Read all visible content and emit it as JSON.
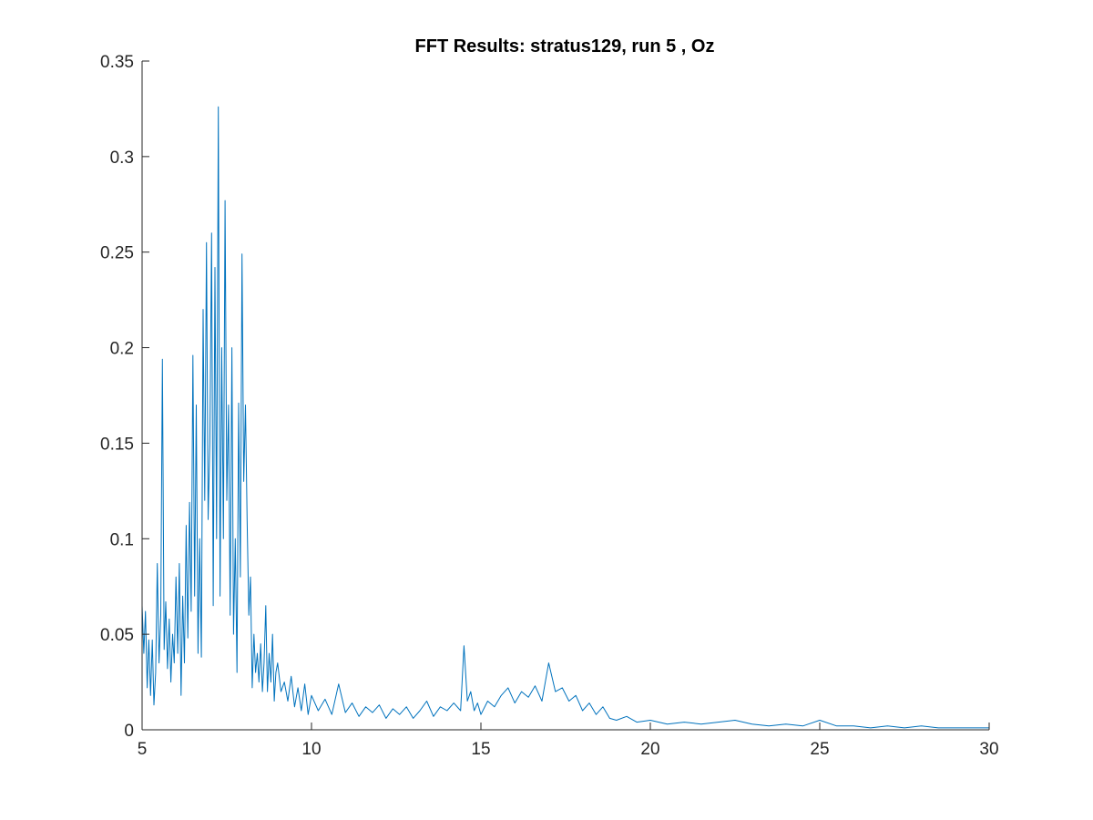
{
  "chart_data": {
    "type": "line",
    "title": "FFT Results: stratus129, run 5 , Oz",
    "xlabel": "",
    "ylabel": "",
    "xlim": [
      5,
      30
    ],
    "ylim": [
      0,
      0.35
    ],
    "xticks": [
      5,
      10,
      15,
      20,
      25,
      30
    ],
    "xtick_labels": [
      "5",
      "10",
      "15",
      "20",
      "25",
      "30"
    ],
    "yticks": [
      0,
      0.05,
      0.1,
      0.15,
      0.2,
      0.25,
      0.3,
      0.35
    ],
    "ytick_labels": [
      "0",
      "0.05",
      "0.1",
      "0.15",
      "0.2",
      "0.25",
      "0.3",
      "0.35"
    ],
    "grid": false,
    "line_color": "#0072BD",
    "series": [
      {
        "x": [
          5.0,
          5.05,
          5.1,
          5.15,
          5.2,
          5.25,
          5.3,
          5.35,
          5.4,
          5.45,
          5.5,
          5.55,
          5.6,
          5.65,
          5.7,
          5.75,
          5.8,
          5.85,
          5.9,
          5.95,
          6.0,
          6.05,
          6.1,
          6.15,
          6.2,
          6.25,
          6.3,
          6.35,
          6.4,
          6.45,
          6.5,
          6.55,
          6.6,
          6.65,
          6.7,
          6.75,
          6.8,
          6.85,
          6.9,
          6.95,
          7.0,
          7.05,
          7.1,
          7.15,
          7.2,
          7.25,
          7.3,
          7.35,
          7.4,
          7.45,
          7.5,
          7.55,
          7.6,
          7.65,
          7.7,
          7.75,
          7.8,
          7.85,
          7.9,
          7.95,
          8.0,
          8.05,
          8.1,
          8.15,
          8.2,
          8.25,
          8.3,
          8.35,
          8.4,
          8.45,
          8.5,
          8.55,
          8.6,
          8.65,
          8.7,
          8.75,
          8.8,
          8.85,
          8.9,
          8.95,
          9.0,
          9.1,
          9.2,
          9.3,
          9.4,
          9.5,
          9.6,
          9.7,
          9.8,
          9.9,
          10.0,
          10.2,
          10.4,
          10.6,
          10.8,
          11.0,
          11.2,
          11.4,
          11.6,
          11.8,
          12.0,
          12.2,
          12.4,
          12.6,
          12.8,
          13.0,
          13.2,
          13.4,
          13.6,
          13.8,
          14.0,
          14.2,
          14.4,
          14.5,
          14.6,
          14.7,
          14.8,
          14.9,
          15.0,
          15.2,
          15.4,
          15.6,
          15.8,
          16.0,
          16.2,
          16.4,
          16.6,
          16.8,
          17.0,
          17.2,
          17.4,
          17.6,
          17.8,
          18.0,
          18.2,
          18.4,
          18.6,
          18.8,
          19.0,
          19.3,
          19.6,
          20.0,
          20.5,
          21.0,
          21.5,
          22.0,
          22.5,
          23.0,
          23.5,
          24.0,
          24.5,
          25.0,
          25.5,
          26.0,
          26.5,
          27.0,
          27.5,
          28.0,
          28.5,
          29.0,
          29.5,
          30.0
        ],
        "y": [
          0.065,
          0.04,
          0.062,
          0.022,
          0.047,
          0.018,
          0.047,
          0.013,
          0.03,
          0.087,
          0.035,
          0.06,
          0.194,
          0.042,
          0.067,
          0.032,
          0.058,
          0.025,
          0.05,
          0.035,
          0.08,
          0.04,
          0.087,
          0.018,
          0.07,
          0.035,
          0.107,
          0.048,
          0.119,
          0.062,
          0.196,
          0.07,
          0.17,
          0.04,
          0.1,
          0.038,
          0.22,
          0.12,
          0.255,
          0.11,
          0.15,
          0.26,
          0.065,
          0.242,
          0.1,
          0.326,
          0.07,
          0.2,
          0.1,
          0.277,
          0.12,
          0.17,
          0.06,
          0.2,
          0.05,
          0.1,
          0.03,
          0.171,
          0.08,
          0.249,
          0.13,
          0.17,
          0.11,
          0.06,
          0.08,
          0.022,
          0.05,
          0.03,
          0.04,
          0.025,
          0.045,
          0.02,
          0.035,
          0.065,
          0.02,
          0.04,
          0.025,
          0.05,
          0.015,
          0.03,
          0.035,
          0.02,
          0.025,
          0.015,
          0.028,
          0.012,
          0.022,
          0.01,
          0.024,
          0.008,
          0.018,
          0.01,
          0.016,
          0.008,
          0.024,
          0.009,
          0.014,
          0.007,
          0.012,
          0.009,
          0.013,
          0.006,
          0.011,
          0.008,
          0.012,
          0.006,
          0.01,
          0.015,
          0.007,
          0.012,
          0.01,
          0.014,
          0.01,
          0.044,
          0.015,
          0.02,
          0.01,
          0.014,
          0.008,
          0.015,
          0.012,
          0.018,
          0.022,
          0.014,
          0.02,
          0.017,
          0.023,
          0.015,
          0.035,
          0.02,
          0.022,
          0.015,
          0.018,
          0.01,
          0.014,
          0.008,
          0.012,
          0.006,
          0.005,
          0.007,
          0.004,
          0.005,
          0.003,
          0.004,
          0.003,
          0.004,
          0.005,
          0.003,
          0.002,
          0.003,
          0.002,
          0.005,
          0.002,
          0.002,
          0.001,
          0.002,
          0.001,
          0.002,
          0.001,
          0.001,
          0.001,
          0.001
        ]
      }
    ]
  }
}
